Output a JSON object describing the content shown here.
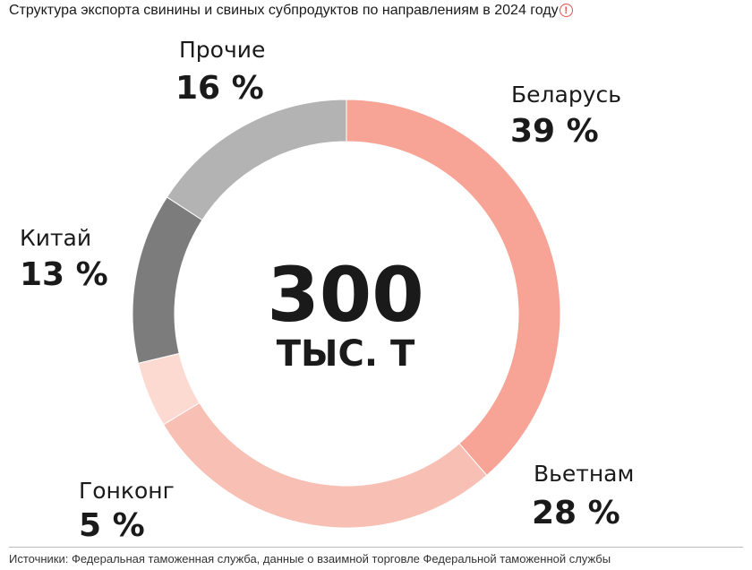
{
  "title": "Структура экспорта свинины и свиных субпродуктов по направлениям в 2024 году",
  "info_icon": "alert-circle-icon",
  "source": "Источники: Федеральная таможенная служба, данные о взаимной торговле Федеральной таможенной службы",
  "chart_data": {
    "type": "pie",
    "variant": "donut",
    "title": "Структура экспорта свинины и свиных субпродуктов по направлениям в 2024 году",
    "center_value": "300",
    "center_unit": "ТЫС. Т",
    "slices": [
      {
        "label": "Беларусь",
        "value": 39,
        "display": "39 %",
        "color": "#f7a497"
      },
      {
        "label": "Вьетнам",
        "value": 28,
        "display": "28 %",
        "color": "#f8bfb4"
      },
      {
        "label": "Гонконг",
        "value": 5,
        "display": "5 %",
        "color": "#fcd9d1"
      },
      {
        "label": "Китай",
        "value": 13,
        "display": "13 %",
        "color": "#7c7c7c"
      },
      {
        "label": "Прочие",
        "value": 16,
        "display": "16 %",
        "color": "#b3b3b3"
      }
    ]
  }
}
